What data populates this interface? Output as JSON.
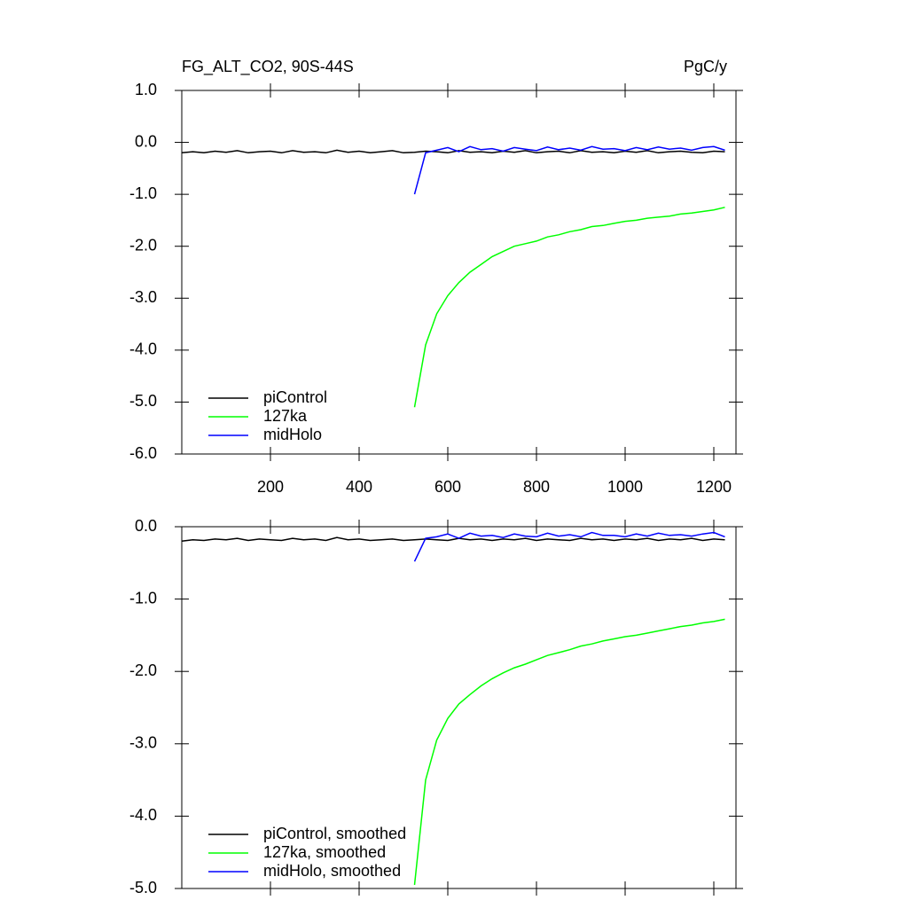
{
  "chart_data": [
    {
      "type": "line",
      "title": "FG_ALT_CO2, 90S-44S",
      "units": "PgC/y",
      "x": [
        0,
        25,
        50,
        75,
        100,
        125,
        150,
        175,
        200,
        225,
        250,
        275,
        300,
        325,
        350,
        375,
        400,
        425,
        450,
        475,
        500,
        525,
        550,
        575,
        600,
        625,
        650,
        675,
        700,
        725,
        750,
        775,
        800,
        825,
        850,
        875,
        900,
        925,
        950,
        975,
        1000,
        1025,
        1050,
        1075,
        1100,
        1125,
        1150,
        1175,
        1200,
        1225
      ],
      "series": [
        {
          "name": "piControl",
          "color": "#000000",
          "values": [
            -0.2,
            -0.18,
            -0.2,
            -0.17,
            -0.19,
            -0.16,
            -0.2,
            -0.18,
            -0.17,
            -0.2,
            -0.16,
            -0.19,
            -0.18,
            -0.2,
            -0.15,
            -0.19,
            -0.17,
            -0.2,
            -0.18,
            -0.16,
            -0.2,
            -0.19,
            -0.17,
            -0.18,
            -0.2,
            -0.16,
            -0.19,
            -0.18,
            -0.2,
            -0.17,
            -0.19,
            -0.16,
            -0.2,
            -0.18,
            -0.17,
            -0.2,
            -0.16,
            -0.19,
            -0.18,
            -0.2,
            -0.17,
            -0.19,
            -0.16,
            -0.2,
            -0.18,
            -0.17,
            -0.19,
            -0.2,
            -0.17,
            -0.18
          ]
        },
        {
          "name": "127ka",
          "color": "#00ff00",
          "values": [
            null,
            null,
            null,
            null,
            null,
            null,
            null,
            null,
            null,
            null,
            null,
            null,
            null,
            null,
            null,
            null,
            null,
            null,
            null,
            null,
            null,
            -5.1,
            -3.9,
            -3.3,
            -2.95,
            -2.7,
            -2.5,
            -2.35,
            -2.2,
            -2.1,
            -2.0,
            -1.95,
            -1.9,
            -1.82,
            -1.78,
            -1.72,
            -1.68,
            -1.62,
            -1.6,
            -1.56,
            -1.52,
            -1.5,
            -1.46,
            -1.44,
            -1.42,
            -1.38,
            -1.36,
            -1.33,
            -1.3,
            -1.25
          ]
        },
        {
          "name": "midHolo",
          "color": "#0000ff",
          "values": [
            null,
            null,
            null,
            null,
            null,
            null,
            null,
            null,
            null,
            null,
            null,
            null,
            null,
            null,
            null,
            null,
            null,
            null,
            null,
            null,
            null,
            -1.0,
            -0.2,
            -0.15,
            -0.1,
            -0.18,
            -0.08,
            -0.14,
            -0.12,
            -0.17,
            -0.1,
            -0.13,
            -0.16,
            -0.09,
            -0.14,
            -0.11,
            -0.15,
            -0.08,
            -0.13,
            -0.12,
            -0.16,
            -0.1,
            -0.14,
            -0.09,
            -0.13,
            -0.11,
            -0.15,
            -0.1,
            -0.08,
            -0.15
          ]
        }
      ],
      "xlim": [
        0,
        1250
      ],
      "xticks": [
        200,
        400,
        600,
        800,
        1000,
        1200
      ],
      "ylim": [
        -6,
        1
      ],
      "yticks": [
        {
          "value": 1,
          "label": "1.0"
        },
        {
          "value": 0,
          "label": "0.0"
        },
        {
          "value": -1,
          "label": "-1.0"
        },
        {
          "value": -2,
          "label": "-2.0"
        },
        {
          "value": -3,
          "label": "-3.0"
        },
        {
          "value": -4,
          "label": "-4.0"
        },
        {
          "value": -5,
          "label": "-5.0"
        },
        {
          "value": -6,
          "label": "-6.0"
        }
      ],
      "legend": "lower left"
    },
    {
      "type": "line",
      "x": [
        0,
        25,
        50,
        75,
        100,
        125,
        150,
        175,
        200,
        225,
        250,
        275,
        300,
        325,
        350,
        375,
        400,
        425,
        450,
        475,
        500,
        525,
        550,
        575,
        600,
        625,
        650,
        675,
        700,
        725,
        750,
        775,
        800,
        825,
        850,
        875,
        900,
        925,
        950,
        975,
        1000,
        1025,
        1050,
        1075,
        1100,
        1125,
        1150,
        1175,
        1200,
        1225
      ],
      "series": [
        {
          "name": "piControl, smoothed",
          "color": "#000000",
          "values": [
            -0.2,
            -0.18,
            -0.19,
            -0.17,
            -0.18,
            -0.16,
            -0.19,
            -0.17,
            -0.18,
            -0.19,
            -0.16,
            -0.18,
            -0.17,
            -0.19,
            -0.15,
            -0.18,
            -0.17,
            -0.19,
            -0.18,
            -0.17,
            -0.19,
            -0.18,
            -0.17,
            -0.18,
            -0.19,
            -0.16,
            -0.18,
            -0.17,
            -0.19,
            -0.17,
            -0.18,
            -0.16,
            -0.19,
            -0.17,
            -0.18,
            -0.19,
            -0.16,
            -0.18,
            -0.17,
            -0.19,
            -0.17,
            -0.18,
            -0.16,
            -0.19,
            -0.17,
            -0.18,
            -0.16,
            -0.19,
            -0.17,
            -0.18
          ]
        },
        {
          "name": "127ka, smoothed",
          "color": "#00ff00",
          "values": [
            null,
            null,
            null,
            null,
            null,
            null,
            null,
            null,
            null,
            null,
            null,
            null,
            null,
            null,
            null,
            null,
            null,
            null,
            null,
            null,
            null,
            -4.95,
            -3.5,
            -2.95,
            -2.65,
            -2.45,
            -2.32,
            -2.2,
            -2.1,
            -2.02,
            -1.95,
            -1.9,
            -1.84,
            -1.78,
            -1.74,
            -1.7,
            -1.65,
            -1.62,
            -1.58,
            -1.55,
            -1.52,
            -1.5,
            -1.47,
            -1.44,
            -1.41,
            -1.38,
            -1.36,
            -1.33,
            -1.31,
            -1.28
          ]
        },
        {
          "name": "midHolo, smoothed",
          "color": "#0000ff",
          "values": [
            null,
            null,
            null,
            null,
            null,
            null,
            null,
            null,
            null,
            null,
            null,
            null,
            null,
            null,
            null,
            null,
            null,
            null,
            null,
            null,
            null,
            -0.48,
            -0.16,
            -0.14,
            -0.1,
            -0.16,
            -0.09,
            -0.13,
            -0.12,
            -0.15,
            -0.1,
            -0.13,
            -0.14,
            -0.09,
            -0.13,
            -0.11,
            -0.14,
            -0.08,
            -0.12,
            -0.12,
            -0.14,
            -0.1,
            -0.13,
            -0.09,
            -0.12,
            -0.11,
            -0.13,
            -0.1,
            -0.08,
            -0.14
          ]
        }
      ],
      "xlim": [
        0,
        1250
      ],
      "xticks": [
        200,
        400,
        600,
        800,
        1000,
        1200
      ],
      "ylim": [
        -5,
        0
      ],
      "yticks": [
        {
          "value": 0,
          "label": "0.0"
        },
        {
          "value": -1,
          "label": "-1.0"
        },
        {
          "value": -2,
          "label": "-2.0"
        },
        {
          "value": -3,
          "label": "-3.0"
        },
        {
          "value": -4,
          "label": "-4.0"
        },
        {
          "value": -5,
          "label": "-5.0"
        }
      ],
      "legend": "lower left"
    }
  ]
}
